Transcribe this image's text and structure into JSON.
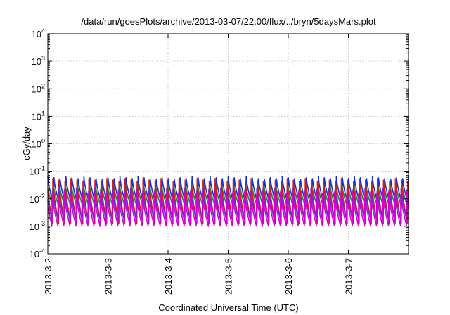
{
  "chart_data": {
    "type": "line",
    "title": "/data/run/goesPlots/archive/2013-03-07/22:00/flux/../bryn/5daysMars.plot",
    "xlabel": "Coordinated Universal Time (UTC)",
    "ylabel": "cGy/day",
    "yscale": "log",
    "ylim": [
      0.0001,
      10000
    ],
    "xlim": [
      "2013-03-02",
      "2013-03-08"
    ],
    "grid": true,
    "y_ticks": [
      {
        "base": "10",
        "exp": "-4"
      },
      {
        "base": "10",
        "exp": "-3"
      },
      {
        "base": "10",
        "exp": "-2"
      },
      {
        "base": "10",
        "exp": "-1"
      },
      {
        "base": "10",
        "exp": "0"
      },
      {
        "base": "10",
        "exp": "1"
      },
      {
        "base": "10",
        "exp": "2"
      },
      {
        "base": "10",
        "exp": "3"
      },
      {
        "base": "10",
        "exp": "4"
      }
    ],
    "x_ticks": [
      "2013-3-2",
      "2013-3-3",
      "2013-3-4",
      "2013-3-5",
      "2013-3-6",
      "2013-3-7"
    ],
    "oscillation_period_hours": 2.4,
    "series": [
      {
        "color": "#1a2fd8",
        "peak": 0.065,
        "trough": 0.006
      },
      {
        "color": "#2fd0dc",
        "peak": 0.032,
        "trough": 0.0045
      },
      {
        "color": "#228b22",
        "peak": 0.04,
        "trough": 0.005
      },
      {
        "color": "#d81a1a",
        "peak": 0.06,
        "trough": 0.0012
      },
      {
        "color": "#7a28c8",
        "peak": 0.025,
        "trough": 0.0015
      },
      {
        "color": "#d400d4",
        "peak": 0.018,
        "trough": 0.001
      }
    ]
  }
}
